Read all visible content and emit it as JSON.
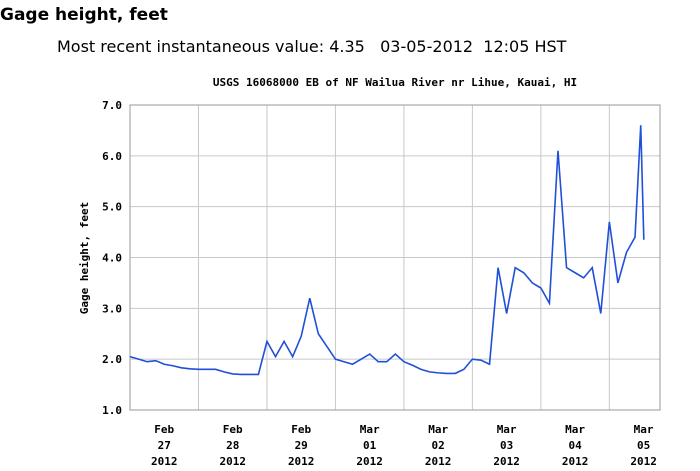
{
  "header": {
    "title": "Gage height, feet",
    "subtitle": "Most recent instantaneous value: 4.35   03-05-2012  12:05 HST"
  },
  "chart_data": {
    "type": "line",
    "title": "USGS 16068000 EB of NF Wailua River nr Lihue, Kauai, HI",
    "y_label": "Gage height, feet",
    "x": [
      "2012-02-27T00:00",
      "2012-02-27T03:00",
      "2012-02-27T06:00",
      "2012-02-27T09:00",
      "2012-02-27T12:00",
      "2012-02-27T15:00",
      "2012-02-27T18:00",
      "2012-02-27T21:00",
      "2012-02-28T00:00",
      "2012-02-28T03:00",
      "2012-02-28T06:00",
      "2012-02-28T09:00",
      "2012-02-28T12:00",
      "2012-02-28T15:00",
      "2012-02-28T18:00",
      "2012-02-28T21:00",
      "2012-02-29T00:00",
      "2012-02-29T03:00",
      "2012-02-29T06:00",
      "2012-02-29T09:00",
      "2012-02-29T12:00",
      "2012-02-29T15:00",
      "2012-02-29T18:00",
      "2012-02-29T21:00",
      "2012-03-01T00:00",
      "2012-03-01T03:00",
      "2012-03-01T06:00",
      "2012-03-01T09:00",
      "2012-03-01T12:00",
      "2012-03-01T15:00",
      "2012-03-01T18:00",
      "2012-03-01T21:00",
      "2012-03-02T00:00",
      "2012-03-02T03:00",
      "2012-03-02T06:00",
      "2012-03-02T09:00",
      "2012-03-02T12:00",
      "2012-03-02T15:00",
      "2012-03-02T18:00",
      "2012-03-02T21:00",
      "2012-03-03T00:00",
      "2012-03-03T03:00",
      "2012-03-03T06:00",
      "2012-03-03T09:00",
      "2012-03-03T12:00",
      "2012-03-03T15:00",
      "2012-03-03T18:00",
      "2012-03-03T21:00",
      "2012-03-04T00:00",
      "2012-03-04T03:00",
      "2012-03-04T06:00",
      "2012-03-04T09:00",
      "2012-03-04T12:00",
      "2012-03-04T15:00",
      "2012-03-04T18:00",
      "2012-03-04T21:00",
      "2012-03-05T00:00",
      "2012-03-05T03:00",
      "2012-03-05T06:00",
      "2012-03-05T09:00",
      "2012-03-05T11:00",
      "2012-03-05T12:05"
    ],
    "series": [
      {
        "name": "Gage height",
        "color": "#1f50d8",
        "values": [
          2.05,
          2.0,
          1.95,
          1.97,
          1.9,
          1.87,
          1.83,
          1.81,
          1.8,
          1.8,
          1.8,
          1.75,
          1.71,
          1.7,
          1.7,
          1.7,
          2.35,
          2.05,
          2.35,
          2.05,
          2.45,
          3.2,
          2.5,
          2.25,
          2.0,
          1.95,
          1.9,
          2.0,
          2.1,
          1.95,
          1.95,
          2.1,
          1.95,
          1.88,
          1.8,
          1.75,
          1.73,
          1.72,
          1.72,
          1.8,
          2.0,
          1.98,
          1.9,
          3.8,
          2.9,
          3.8,
          3.7,
          3.5,
          3.4,
          3.1,
          6.1,
          3.8,
          3.7,
          3.6,
          3.8,
          2.9,
          4.7,
          3.5,
          4.1,
          4.4,
          6.6,
          4.35
        ]
      }
    ],
    "xlim": [
      "2012-02-27T00:00",
      "2012-03-05T17:45"
    ],
    "xticks": [
      {
        "value": "2012-02-27",
        "label": [
          "Feb",
          "27",
          "2012"
        ]
      },
      {
        "value": "2012-02-28",
        "label": [
          "Feb",
          "28",
          "2012"
        ]
      },
      {
        "value": "2012-02-29",
        "label": [
          "Feb",
          "29",
          "2012"
        ]
      },
      {
        "value": "2012-03-01",
        "label": [
          "Mar",
          "01",
          "2012"
        ]
      },
      {
        "value": "2012-03-02",
        "label": [
          "Mar",
          "02",
          "2012"
        ]
      },
      {
        "value": "2012-03-03",
        "label": [
          "Mar",
          "03",
          "2012"
        ]
      },
      {
        "value": "2012-03-04",
        "label": [
          "Mar",
          "04",
          "2012"
        ]
      },
      {
        "value": "2012-03-05",
        "label": [
          "Mar",
          "05",
          "2012"
        ]
      }
    ],
    "ylim": [
      1,
      7
    ],
    "yticks": [
      {
        "value": 1,
        "label": "1.0"
      },
      {
        "value": 2,
        "label": "2.0"
      },
      {
        "value": 3,
        "label": "3.0"
      },
      {
        "value": 4,
        "label": "4.0"
      },
      {
        "value": 5,
        "label": "5.0"
      },
      {
        "value": 6,
        "label": "6.0"
      },
      {
        "value": 7,
        "label": "7.0"
      }
    ],
    "grid": true
  }
}
